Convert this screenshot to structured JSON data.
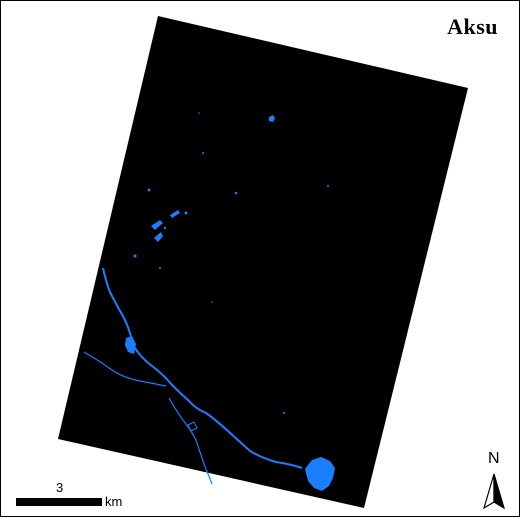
{
  "map": {
    "title": "Aksu",
    "scale_label": "3",
    "scale_unit": "km",
    "north_label": "N",
    "colors": {
      "background": "#ffffff",
      "image_footprint": "#000000",
      "water": "#1a7fff",
      "frame": "#000000"
    },
    "layers": [
      "image-footprint",
      "water-bodies"
    ]
  }
}
